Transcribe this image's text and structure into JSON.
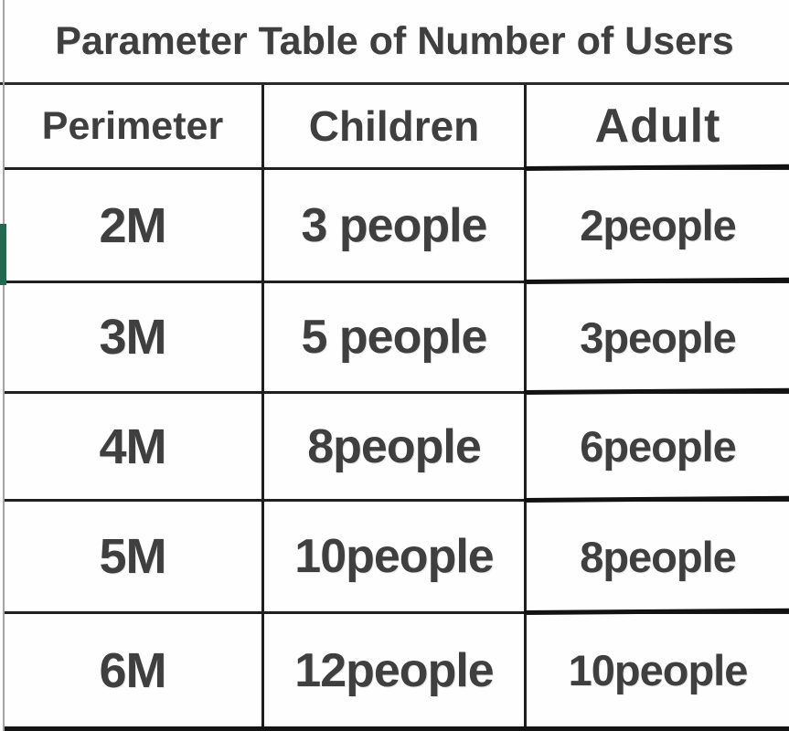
{
  "title": "Parameter Table of Number of Users",
  "chart_data": {
    "type": "table",
    "title": "Parameter Table of Number of Users",
    "columns": [
      "Perimeter",
      "Children",
      "Adult"
    ],
    "rows": [
      {
        "perimeter": "2M",
        "children": "3 people",
        "adult": "2people",
        "children_n": 3,
        "adult_n": 2
      },
      {
        "perimeter": "3M",
        "children": "5 people",
        "adult": "3people",
        "children_n": 5,
        "adult_n": 3
      },
      {
        "perimeter": "4M",
        "children": "8people",
        "adult": "6people",
        "children_n": 8,
        "adult_n": 6
      },
      {
        "perimeter": "5M",
        "children": "10people",
        "adult": "8people",
        "children_n": 10,
        "adult_n": 8
      },
      {
        "perimeter": "6M",
        "children": "12people",
        "adult": "10people",
        "children_n": 12,
        "adult_n": 10
      }
    ]
  },
  "colors": {
    "text": "#3f3f3f",
    "border": "#1f1f1f",
    "background": "#fefefe",
    "green_accent": "#206b4f",
    "edge_line_gray": "#a3a3a3"
  }
}
